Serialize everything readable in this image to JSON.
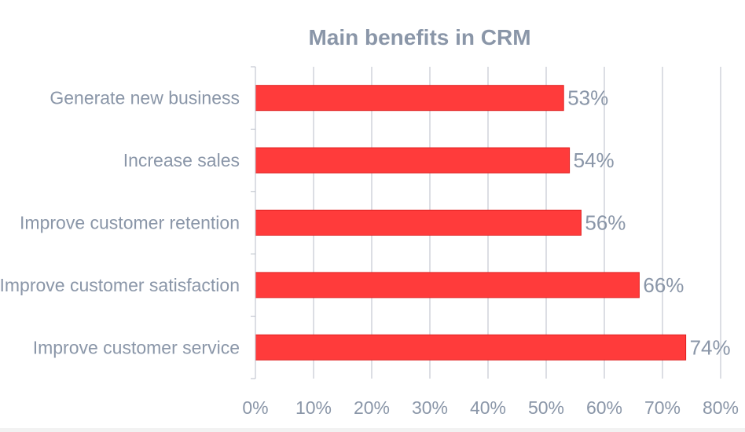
{
  "chart_data": {
    "type": "bar",
    "orientation": "horizontal",
    "title": "Main benefits in CRM",
    "xlabel": "",
    "ylabel": "",
    "categories": [
      "Generate new business",
      "Increase sales",
      "Improve customer retention",
      "Improve customer satisfaction",
      "Improve customer service"
    ],
    "values": [
      53,
      54,
      56,
      66,
      74
    ],
    "data_labels": [
      "53%",
      "54%",
      "56%",
      "66%",
      "74%"
    ],
    "xlim": [
      0,
      80
    ],
    "x_ticks": [
      0,
      10,
      20,
      30,
      40,
      50,
      60,
      70,
      80
    ],
    "x_tick_labels": [
      "0%",
      "10%",
      "20%",
      "30%",
      "40%",
      "50%",
      "60%",
      "70%",
      "80%"
    ],
    "grid": true,
    "legend": "none",
    "colors": {
      "bar": "#ff3b3b",
      "bar_stroke": "#e02020",
      "text": "#8a96a8",
      "grid": "#b8bec8"
    }
  }
}
